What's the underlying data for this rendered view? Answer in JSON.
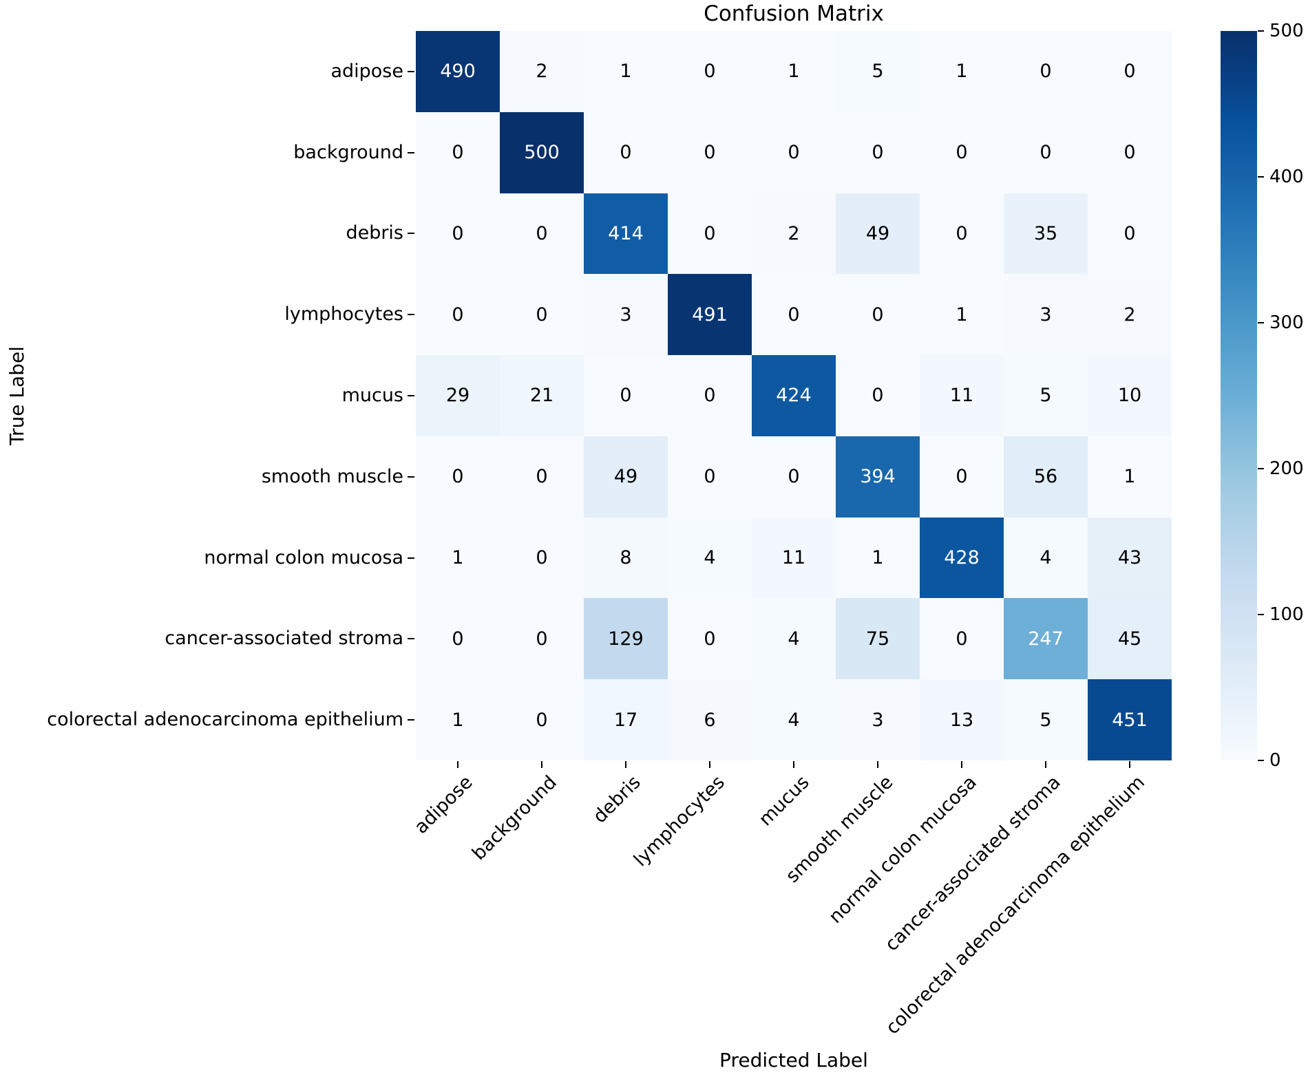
{
  "chart_data": {
    "type": "heatmap",
    "title": "Confusion Matrix",
    "xlabel": "Predicted Label",
    "ylabel": "True Label",
    "categories": [
      "adipose",
      "background",
      "debris",
      "lymphocytes",
      "mucus",
      "smooth muscle",
      "normal colon mucosa",
      "cancer-associated stroma",
      "colorectal adenocarcinoma epithelium"
    ],
    "matrix": [
      [
        490,
        2,
        1,
        0,
        1,
        5,
        1,
        0,
        0
      ],
      [
        0,
        500,
        0,
        0,
        0,
        0,
        0,
        0,
        0
      ],
      [
        0,
        0,
        414,
        0,
        2,
        49,
        0,
        35,
        0
      ],
      [
        0,
        0,
        3,
        491,
        0,
        0,
        1,
        3,
        2
      ],
      [
        29,
        21,
        0,
        0,
        424,
        0,
        11,
        5,
        10
      ],
      [
        0,
        0,
        49,
        0,
        0,
        394,
        0,
        56,
        1
      ],
      [
        1,
        0,
        8,
        4,
        11,
        1,
        428,
        4,
        43
      ],
      [
        0,
        0,
        129,
        0,
        4,
        75,
        0,
        247,
        45
      ],
      [
        1,
        0,
        17,
        6,
        4,
        3,
        13,
        5,
        451
      ]
    ],
    "vmin": 0,
    "vmax": 500,
    "colormap": "Blues",
    "colormap_stops": [
      "#f7fbff",
      "#deebf7",
      "#c6dbef",
      "#9ecae1",
      "#6baed6",
      "#4292c6",
      "#2171b5",
      "#08519c",
      "#08306b"
    ],
    "colorbar_ticks": [
      0,
      100,
      200,
      300,
      400,
      500
    ],
    "annotation_text_dark": "#000000",
    "annotation_text_light": "#ffffff",
    "legend_position": "right colorbar",
    "grid": "off"
  }
}
